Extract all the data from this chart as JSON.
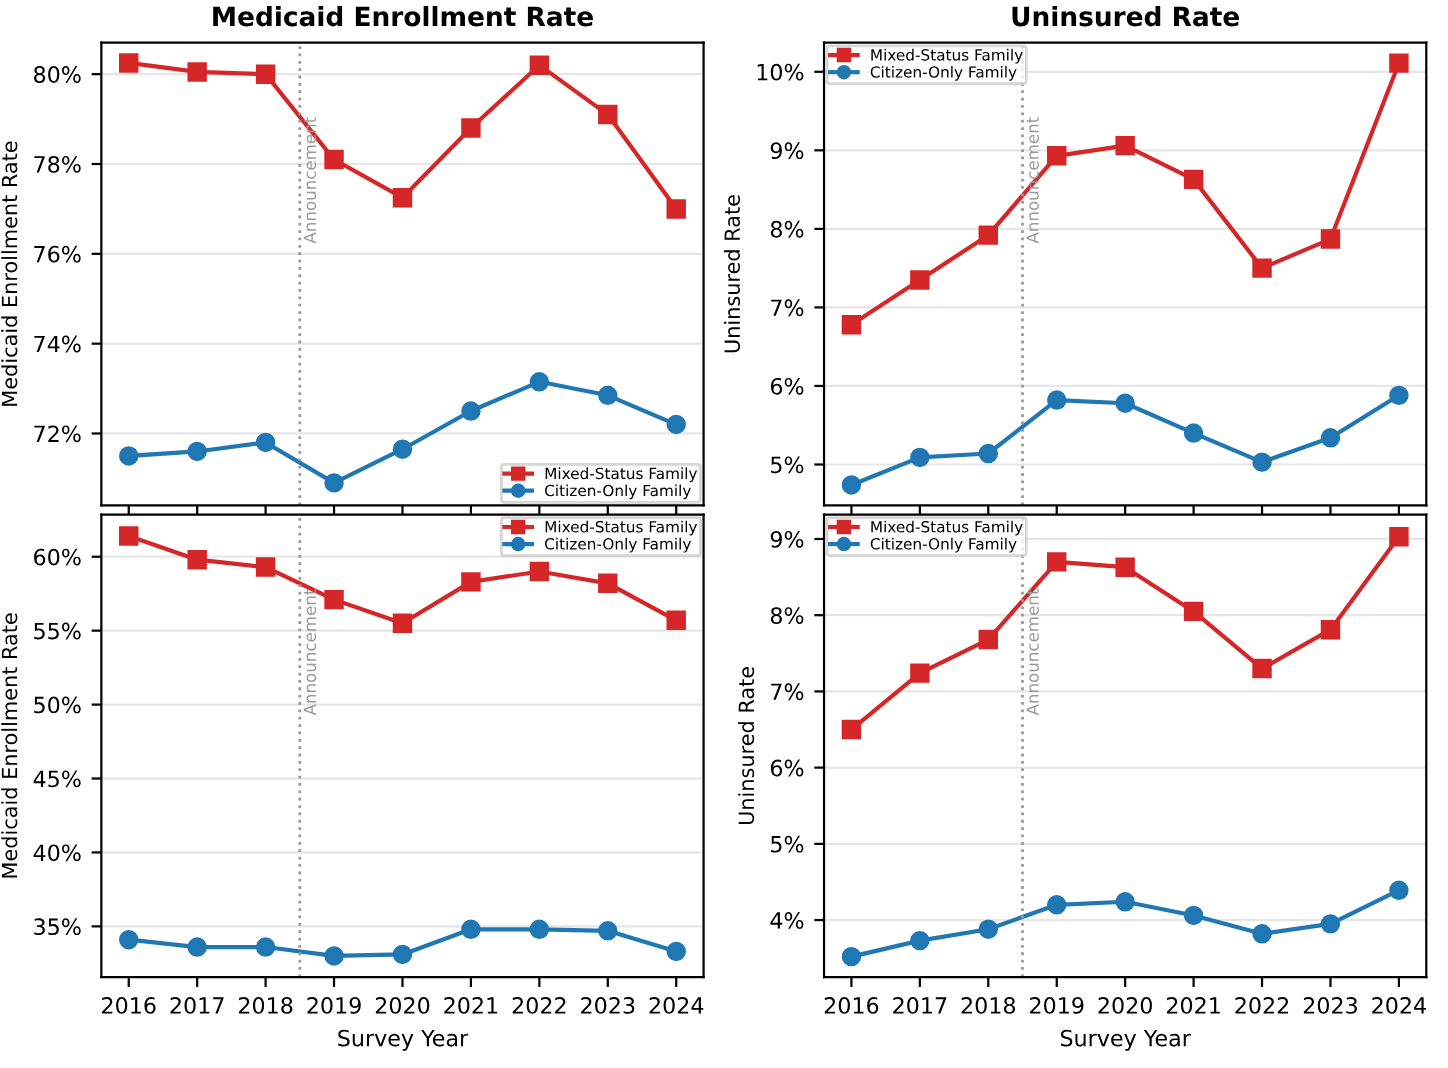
{
  "chart_data": [
    {
      "type": "line",
      "title": "Medicaid Enrollment Rate",
      "ylabel": "Medicaid Enrollment Rate",
      "x": [
        2016,
        2017,
        2018,
        2019,
        2020,
        2021,
        2022,
        2023,
        2024
      ],
      "xlim": [
        2015.6,
        2024.4
      ],
      "xticks": [
        2016,
        2017,
        2018,
        2019,
        2020,
        2021,
        2022,
        2023,
        2024
      ],
      "ylim": [
        70.4,
        80.7
      ],
      "yticks": [
        {
          "value": 72,
          "label": "72%"
        },
        {
          "value": 74,
          "label": "74%"
        },
        {
          "value": 76,
          "label": "76%"
        },
        {
          "value": 78,
          "label": "78%"
        },
        {
          "value": 80,
          "label": "80%"
        }
      ],
      "tick_labels": "y",
      "grid": "y",
      "legend": "bottom right",
      "series": [
        {
          "name": "Mixed-Status Family",
          "color": "#d62728",
          "marker": "square",
          "values": [
            80.25,
            80.05,
            80.0,
            78.1,
            77.25,
            78.8,
            80.2,
            79.1,
            77.0
          ]
        },
        {
          "name": "Citizen-Only Family",
          "color": "#1f77b4",
          "marker": "circle",
          "values": [
            71.5,
            71.6,
            71.8,
            70.9,
            71.65,
            72.5,
            73.15,
            72.85,
            72.2
          ]
        }
      ],
      "ref_lines": [
        {
          "axis": "x",
          "value": 2018.5,
          "label": "Announcement",
          "color": "#999999",
          "line_style": "dotted"
        }
      ]
    },
    {
      "type": "line",
      "title": "Uninsured Rate",
      "ylabel": "Uninsured Rate",
      "x": [
        2016,
        2017,
        2018,
        2019,
        2020,
        2021,
        2022,
        2023,
        2024
      ],
      "xlim": [
        2015.6,
        2024.4
      ],
      "xticks": [
        2016,
        2017,
        2018,
        2019,
        2020,
        2021,
        2022,
        2023,
        2024
      ],
      "ylim": [
        4.48,
        10.37
      ],
      "yticks": [
        {
          "value": 5,
          "label": "5%"
        },
        {
          "value": 6,
          "label": "6%"
        },
        {
          "value": 7,
          "label": "7%"
        },
        {
          "value": 8,
          "label": "8%"
        },
        {
          "value": 9,
          "label": "9%"
        },
        {
          "value": 10,
          "label": "10%"
        }
      ],
      "tick_labels": "y",
      "grid": "y",
      "legend": "top left",
      "series": [
        {
          "name": "Mixed-Status Family",
          "color": "#d62728",
          "marker": "square",
          "values": [
            6.78,
            7.35,
            7.92,
            8.93,
            9.06,
            8.63,
            7.5,
            7.87,
            10.11
          ]
        },
        {
          "name": "Citizen-Only Family",
          "color": "#1f77b4",
          "marker": "circle",
          "values": [
            4.74,
            5.09,
            5.14,
            5.82,
            5.78,
            5.4,
            5.03,
            5.34,
            5.88
          ]
        }
      ],
      "ref_lines": [
        {
          "axis": "x",
          "value": 2018.5,
          "label": "Announcement",
          "color": "#999999",
          "line_style": "dotted"
        }
      ]
    },
    {
      "type": "line",
      "ylabel": "Medicaid Enrollment Rate",
      "xlabel": "Survey Year",
      "x": [
        2016,
        2017,
        2018,
        2019,
        2020,
        2021,
        2022,
        2023,
        2024
      ],
      "xlim": [
        2015.6,
        2024.4
      ],
      "xticks": [
        2016,
        2017,
        2018,
        2019,
        2020,
        2021,
        2022,
        2023,
        2024
      ],
      "ylim": [
        31.56,
        62.85
      ],
      "yticks": [
        {
          "value": 35,
          "label": "35%"
        },
        {
          "value": 40,
          "label": "40%"
        },
        {
          "value": 45,
          "label": "45%"
        },
        {
          "value": 50,
          "label": "50%"
        },
        {
          "value": 55,
          "label": "55%"
        },
        {
          "value": 60,
          "label": "60%"
        }
      ],
      "grid": "y",
      "legend": "top right",
      "series": [
        {
          "name": "Mixed-Status Family",
          "color": "#d62728",
          "marker": "square",
          "values": [
            61.4,
            59.8,
            59.3,
            57.1,
            55.5,
            58.3,
            59.0,
            58.2,
            55.7
          ]
        },
        {
          "name": "Citizen-Only Family",
          "color": "#1f77b4",
          "marker": "circle",
          "values": [
            34.1,
            33.6,
            33.6,
            33.0,
            33.1,
            34.8,
            34.8,
            34.7,
            33.3
          ]
        }
      ],
      "ref_lines": [
        {
          "axis": "x",
          "value": 2018.5,
          "label": "Announcement",
          "color": "#999999",
          "line_style": "dotted"
        }
      ]
    },
    {
      "type": "line",
      "ylabel": "Uninsured Rate",
      "xlabel": "Survey Year",
      "x": [
        2016,
        2017,
        2018,
        2019,
        2020,
        2021,
        2022,
        2023,
        2024
      ],
      "xlim": [
        2015.6,
        2024.4
      ],
      "xticks": [
        2016,
        2017,
        2018,
        2019,
        2020,
        2021,
        2022,
        2023,
        2024
      ],
      "ylim": [
        3.25,
        9.32
      ],
      "yticks": [
        {
          "value": 4,
          "label": "4%"
        },
        {
          "value": 5,
          "label": "5%"
        },
        {
          "value": 6,
          "label": "6%"
        },
        {
          "value": 7,
          "label": "7%"
        },
        {
          "value": 8,
          "label": "8%"
        },
        {
          "value": 9,
          "label": "9%"
        }
      ],
      "grid": "y",
      "legend": "top left",
      "series": [
        {
          "name": "Mixed-Status Family",
          "color": "#d62728",
          "marker": "square",
          "values": [
            6.5,
            7.24,
            7.68,
            8.7,
            8.63,
            8.05,
            7.3,
            7.81,
            9.03
          ]
        },
        {
          "name": "Citizen-Only Family",
          "color": "#1f77b4",
          "marker": "circle",
          "values": [
            3.52,
            3.73,
            3.88,
            4.2,
            4.24,
            4.06,
            3.82,
            3.95,
            4.39
          ]
        }
      ],
      "ref_lines": [
        {
          "axis": "x",
          "value": 2018.5,
          "label": "Announcement",
          "color": "#999999",
          "line_style": "dotted"
        }
      ]
    }
  ]
}
